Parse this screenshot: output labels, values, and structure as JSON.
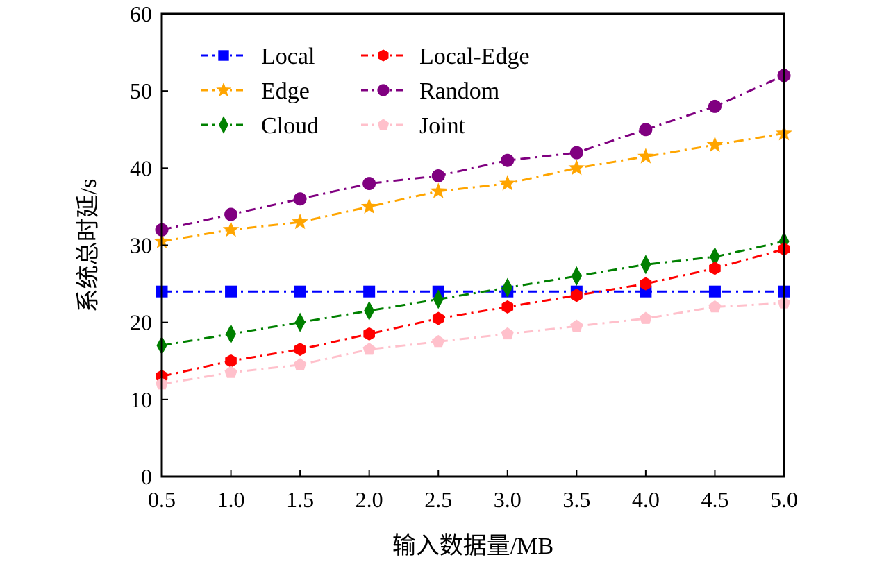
{
  "chart_data": {
    "type": "line",
    "title": "",
    "xlabel": "输入数据量/MB",
    "ylabel": "系统总时延/s",
    "x": [
      0.5,
      1.0,
      1.5,
      2.0,
      2.5,
      3.0,
      3.5,
      4.0,
      4.5,
      5.0
    ],
    "xticks": [
      "0.5",
      "1.0",
      "1.5",
      "2.0",
      "2.5",
      "3.0",
      "3.5",
      "4.0",
      "4.5",
      "5.0"
    ],
    "yticks": [
      "0",
      "10",
      "20",
      "30",
      "40",
      "50",
      "60"
    ],
    "xlim": [
      0.5,
      5.0
    ],
    "ylim": [
      0,
      60
    ],
    "grid": false,
    "legend_position": "top-left",
    "legend_columns": 2,
    "series": [
      {
        "name": "Local",
        "color": "#0000ff",
        "marker": "square",
        "linestyle": "dash-dot",
        "values": [
          24,
          24,
          24,
          24,
          24,
          24,
          24,
          24,
          24,
          24
        ]
      },
      {
        "name": "Edge",
        "color": "#ffa500",
        "marker": "star",
        "linestyle": "dash-dot",
        "values": [
          30.5,
          32,
          33,
          35,
          37,
          38,
          40,
          41.5,
          43,
          44.5
        ]
      },
      {
        "name": "Cloud",
        "color": "#008000",
        "marker": "diamond",
        "linestyle": "dash-dot",
        "values": [
          17,
          18.5,
          20,
          21.5,
          23,
          24.5,
          26,
          27.5,
          28.5,
          30.5
        ]
      },
      {
        "name": "Local-Edge",
        "color": "#ff0000",
        "marker": "hexagon",
        "linestyle": "dash-dot",
        "values": [
          13,
          15,
          16.5,
          18.5,
          20.5,
          22,
          23.5,
          25,
          27,
          29.5
        ]
      },
      {
        "name": "Random",
        "color": "#800080",
        "marker": "circle",
        "linestyle": "dash-dot",
        "values": [
          32,
          34,
          36,
          38,
          39,
          41,
          42,
          45,
          48,
          52
        ]
      },
      {
        "name": "Joint",
        "color": "#ffc0cb",
        "marker": "pentagon",
        "linestyle": "dash-dot",
        "values": [
          12,
          13.5,
          14.5,
          16.5,
          17.5,
          18.5,
          19.5,
          20.5,
          22,
          22.5
        ]
      }
    ]
  }
}
